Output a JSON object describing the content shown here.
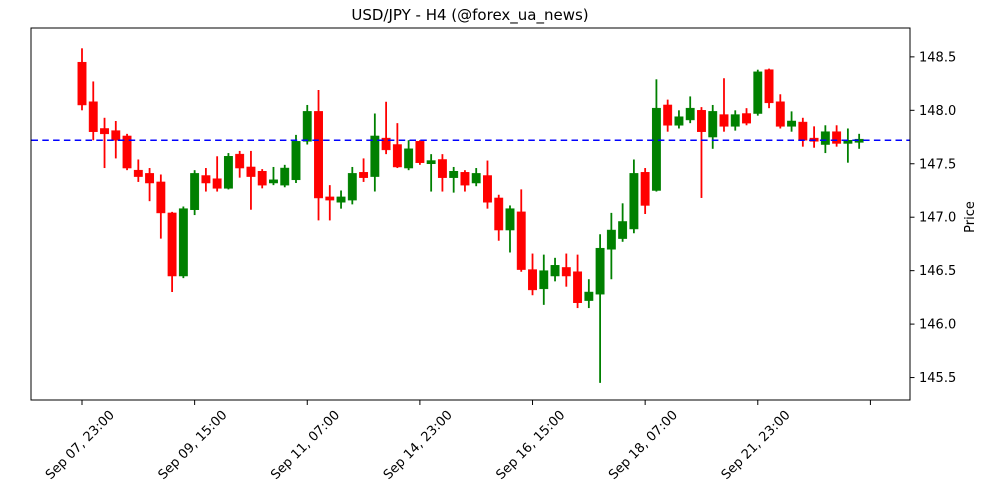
{
  "figure": {
    "background": "#ffffff"
  },
  "chart_data": {
    "type": "candlestick",
    "title": "USD/JPY - H4 (@forex_ua_news)",
    "ylabel": "Price",
    "y_axis_side": "right",
    "grid": false,
    "legend": "none",
    "y_ticks": [
      148.5,
      148.0,
      147.5,
      147.0,
      146.5,
      146.0,
      145.5
    ],
    "ylim": [
      145.29,
      148.77
    ],
    "x_ticks": [
      {
        "index": 0,
        "label": "Sep 07, 23:00"
      },
      {
        "index": 10,
        "label": "Sep 09, 15:00"
      },
      {
        "index": 20,
        "label": "Sep 11, 07:00"
      },
      {
        "index": 30,
        "label": "Sep 14, 23:00"
      },
      {
        "index": 40,
        "label": "Sep 16, 15:00"
      },
      {
        "index": 50,
        "label": "Sep 18, 07:00"
      },
      {
        "index": 60,
        "label": "Sep 21, 23:00"
      },
      {
        "index": 70,
        "label": ""
      }
    ],
    "hline": {
      "price": 147.72,
      "color": "#0000ff",
      "style": "dashed"
    },
    "colors": {
      "up": "#008000",
      "down": "#ff0000",
      "axis": "#000000",
      "background": "#ffffff"
    },
    "ohlc": [
      [
        148.45,
        148.58,
        148.0,
        148.05
      ],
      [
        148.08,
        148.27,
        147.72,
        147.8
      ],
      [
        147.83,
        147.93,
        147.46,
        147.78
      ],
      [
        147.81,
        147.9,
        147.55,
        147.72
      ],
      [
        147.76,
        147.78,
        147.44,
        147.46
      ],
      [
        147.44,
        147.54,
        147.33,
        147.38
      ],
      [
        147.41,
        147.46,
        147.15,
        147.32
      ],
      [
        147.33,
        147.4,
        146.8,
        147.04
      ],
      [
        147.04,
        147.05,
        146.3,
        146.45
      ],
      [
        146.45,
        147.1,
        146.43,
        147.08
      ],
      [
        147.07,
        147.44,
        147.02,
        147.41
      ],
      [
        147.39,
        147.46,
        147.24,
        147.32
      ],
      [
        147.36,
        147.57,
        147.24,
        147.27
      ],
      [
        147.27,
        147.6,
        147.26,
        147.57
      ],
      [
        147.59,
        147.62,
        147.37,
        147.46
      ],
      [
        147.47,
        147.62,
        147.07,
        147.38
      ],
      [
        147.43,
        147.45,
        147.27,
        147.3
      ],
      [
        147.32,
        147.47,
        147.3,
        147.35
      ],
      [
        147.3,
        147.49,
        147.28,
        147.46
      ],
      [
        147.35,
        147.77,
        147.32,
        147.71
      ],
      [
        147.71,
        148.05,
        147.68,
        147.99
      ],
      [
        147.99,
        148.19,
        146.97,
        147.18
      ],
      [
        147.19,
        147.3,
        146.97,
        147.16
      ],
      [
        147.14,
        147.25,
        147.08,
        147.19
      ],
      [
        147.16,
        147.47,
        147.12,
        147.41
      ],
      [
        147.42,
        147.55,
        147.33,
        147.37
      ],
      [
        147.38,
        147.97,
        147.24,
        147.76
      ],
      [
        147.74,
        148.08,
        147.59,
        147.63
      ],
      [
        147.68,
        147.88,
        147.46,
        147.47
      ],
      [
        147.46,
        147.72,
        147.44,
        147.64
      ],
      [
        147.71,
        147.72,
        147.49,
        147.51
      ],
      [
        147.5,
        147.59,
        147.24,
        147.53
      ],
      [
        147.54,
        147.59,
        147.24,
        147.37
      ],
      [
        147.37,
        147.47,
        147.23,
        147.43
      ],
      [
        147.42,
        147.44,
        147.24,
        147.3
      ],
      [
        147.32,
        147.46,
        147.29,
        147.41
      ],
      [
        147.39,
        147.53,
        147.08,
        147.14
      ],
      [
        147.18,
        147.21,
        146.78,
        146.88
      ],
      [
        146.88,
        147.11,
        146.67,
        147.08
      ],
      [
        147.05,
        147.26,
        146.49,
        146.51
      ],
      [
        146.51,
        146.66,
        146.27,
        146.32
      ],
      [
        146.33,
        146.65,
        146.18,
        146.5
      ],
      [
        146.45,
        146.62,
        146.4,
        146.55
      ],
      [
        146.53,
        146.66,
        146.35,
        146.45
      ],
      [
        146.49,
        146.65,
        146.15,
        146.2
      ],
      [
        146.22,
        146.42,
        146.15,
        146.3
      ],
      [
        146.28,
        146.84,
        145.45,
        146.71
      ],
      [
        146.7,
        147.04,
        146.42,
        146.88
      ],
      [
        146.8,
        147.13,
        146.77,
        146.96
      ],
      [
        146.89,
        147.54,
        146.85,
        147.41
      ],
      [
        147.42,
        147.46,
        147.03,
        147.11
      ],
      [
        147.25,
        148.29,
        147.24,
        148.02
      ],
      [
        148.05,
        148.1,
        147.8,
        147.86
      ],
      [
        147.86,
        148.0,
        147.83,
        147.94
      ],
      [
        147.91,
        148.13,
        147.88,
        148.02
      ],
      [
        148.0,
        148.03,
        147.18,
        147.8
      ],
      [
        147.75,
        148.05,
        147.64,
        147.99
      ],
      [
        147.96,
        148.3,
        147.8,
        147.85
      ],
      [
        147.85,
        148.0,
        147.81,
        147.96
      ],
      [
        147.97,
        148.02,
        147.86,
        147.88
      ],
      [
        147.97,
        148.38,
        147.95,
        148.36
      ],
      [
        148.38,
        148.39,
        148.02,
        148.07
      ],
      [
        148.08,
        148.15,
        147.83,
        147.85
      ],
      [
        147.85,
        147.99,
        147.8,
        147.9
      ],
      [
        147.89,
        147.93,
        147.66,
        147.72
      ],
      [
        147.74,
        147.85,
        147.65,
        147.71
      ],
      [
        147.68,
        147.86,
        147.6,
        147.8
      ],
      [
        147.8,
        147.86,
        147.66,
        147.69
      ],
      [
        147.69,
        147.83,
        147.51,
        147.72
      ],
      [
        147.7,
        147.78,
        147.64,
        147.73
      ]
    ]
  }
}
